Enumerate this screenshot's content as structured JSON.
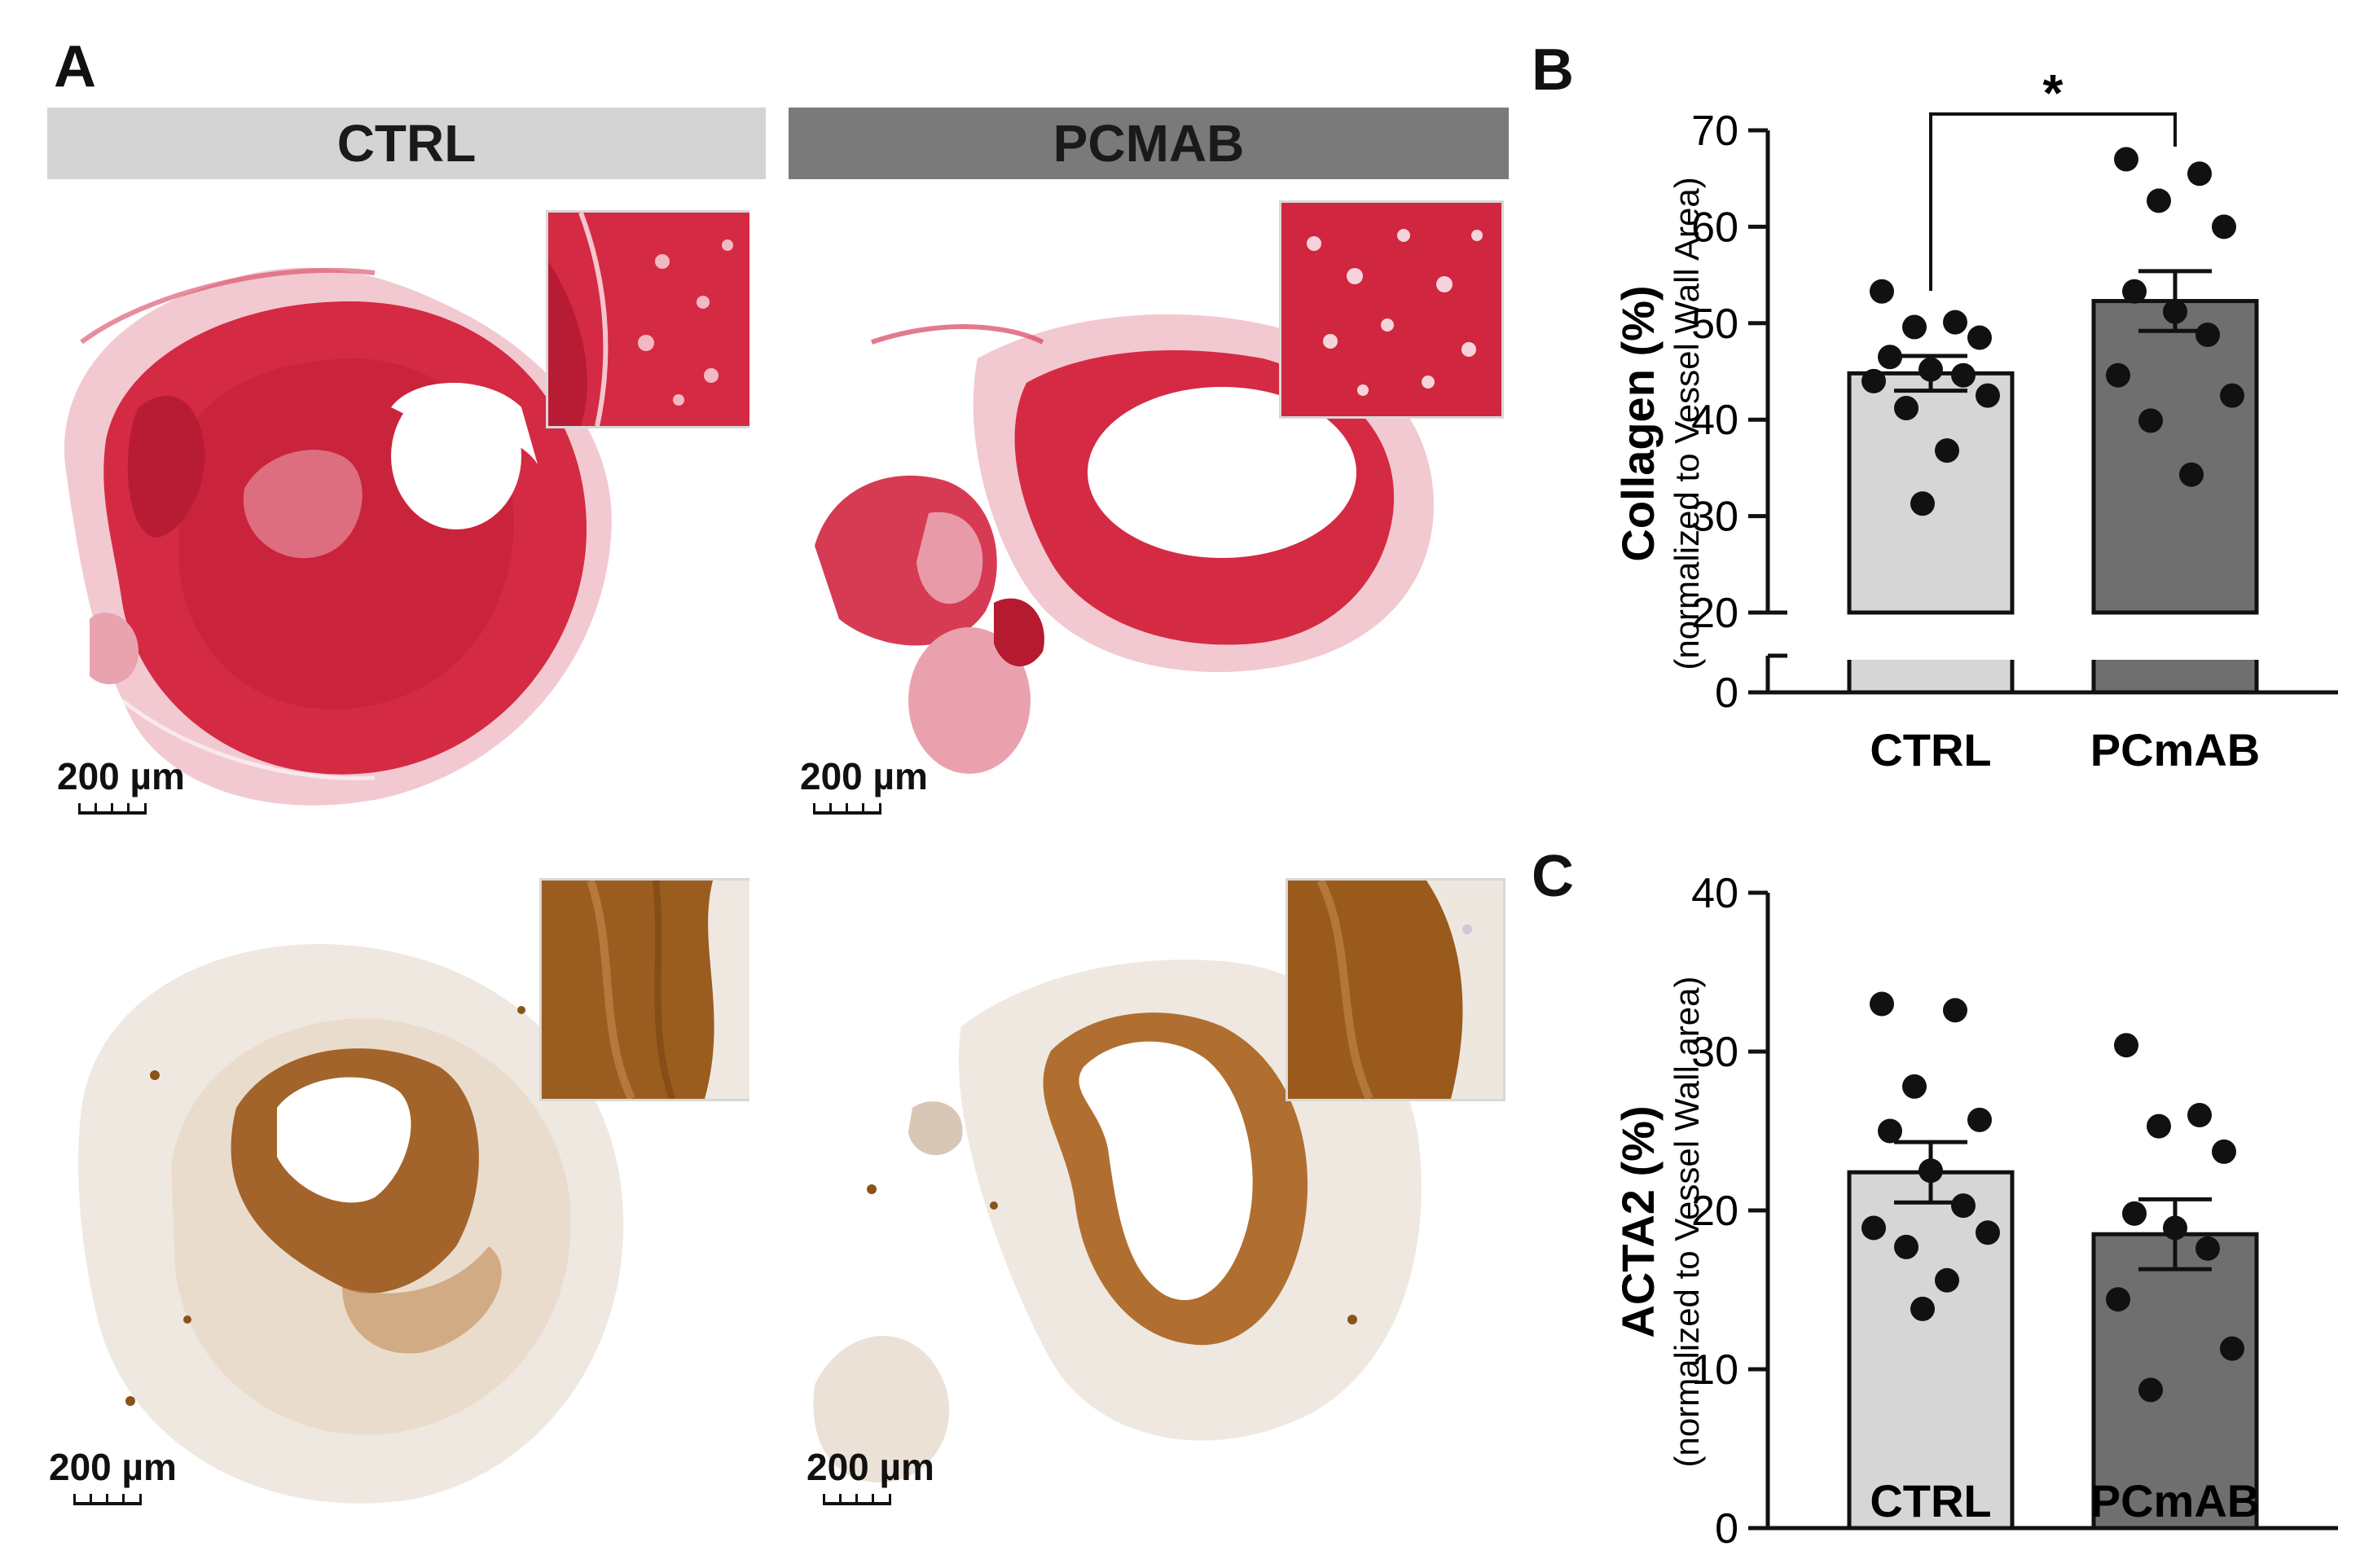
{
  "panels": {
    "A": "A",
    "B": "B",
    "C": "C"
  },
  "groups": {
    "ctrl": "CTRL",
    "pcmab": "PCMAB"
  },
  "scale_bar_label": "200 µm",
  "colors": {
    "ctrl_header": "#d4d4d4",
    "pcmab_header": "#7a7a7a",
    "ctrl_bar": "#d6d6d6",
    "pcmab_bar": "#6f6f6f",
    "collagen_stain": "#d0203a",
    "acta2_stain": "#8a5418"
  },
  "chart_data": [
    {
      "panel": "B",
      "type": "bar",
      "ylabel": "Collagen (%)",
      "ylabel_sub": "(normalized to Vessel Wall Area)",
      "categories": [
        "CTRL",
        "PCmAB"
      ],
      "yticks": [
        0,
        20,
        30,
        40,
        50,
        60,
        70
      ],
      "ylim": [
        0,
        70
      ],
      "axis_break": [
        0,
        20
      ],
      "significance": "*",
      "series": [
        {
          "name": "CTRL",
          "mean": 44.8,
          "sem": 1.8,
          "points": [
            53.3,
            50.1,
            49.6,
            48.5,
            46.5,
            45.2,
            44.6,
            44.0,
            42.5,
            41.2,
            36.8,
            31.3
          ]
        },
        {
          "name": "PCmAB",
          "mean": 52.3,
          "sem": 3.1,
          "points": [
            67.0,
            65.5,
            62.7,
            60.0,
            53.3,
            51.2,
            48.8,
            44.6,
            42.5,
            39.9,
            34.3
          ]
        }
      ]
    },
    {
      "panel": "C",
      "type": "bar",
      "ylabel": "ACTA2 (%)",
      "ylabel_sub": "(normalized to Vessel Wall area)",
      "categories": [
        "CTRL",
        "PCmAB"
      ],
      "yticks": [
        0,
        10,
        20,
        30,
        40
      ],
      "ylim": [
        0,
        40
      ],
      "series": [
        {
          "name": "CTRL",
          "mean": 22.4,
          "sem": 1.9,
          "points": [
            33.0,
            32.6,
            27.8,
            25.7,
            25.0,
            22.5,
            20.3,
            18.9,
            18.6,
            17.7,
            15.6,
            13.8
          ]
        },
        {
          "name": "PCmAB",
          "mean": 18.5,
          "sem": 2.2,
          "points": [
            30.4,
            26.0,
            25.3,
            23.7,
            19.8,
            18.9,
            17.6,
            14.4,
            11.3,
            8.7
          ]
        }
      ]
    }
  ]
}
